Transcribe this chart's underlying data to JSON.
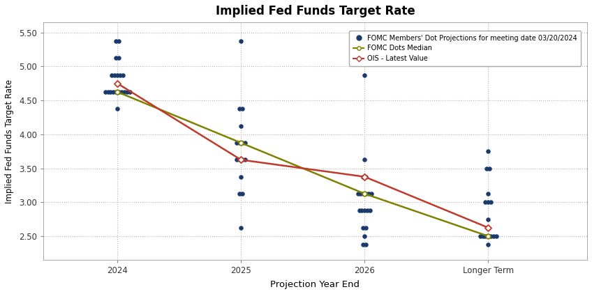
{
  "title": "Implied Fed Funds Target Rate",
  "xlabel": "Projection Year End",
  "ylabel": "Implied Fed Funds Target Rate",
  "background_color": "#ffffff",
  "x_positions": [
    1,
    2,
    3,
    4
  ],
  "x_labels": [
    "2024",
    "2025",
    "2026",
    "Longer Term"
  ],
  "xlim": [
    0.4,
    4.8
  ],
  "ylim": [
    2.15,
    5.65
  ],
  "yticks": [
    2.5,
    3.0,
    3.5,
    4.0,
    4.5,
    5.0,
    5.5
  ],
  "dot_color": "#1a3a6b",
  "dot_size": 22,
  "dots": {
    "2024": [
      4.625,
      4.625,
      4.625,
      4.625,
      4.625,
      4.625,
      4.625,
      4.625,
      4.875,
      4.875,
      4.875,
      4.875,
      4.875,
      4.375,
      5.125,
      5.125,
      5.375,
      5.375,
      4.625,
      4.625
    ],
    "2025": [
      5.375,
      4.375,
      4.375,
      4.125,
      3.875,
      3.875,
      3.875,
      3.875,
      3.625,
      3.625,
      3.625,
      3.625,
      3.375,
      3.125,
      3.125,
      2.625
    ],
    "2026": [
      4.875,
      3.625,
      3.375,
      3.375,
      3.125,
      3.125,
      3.125,
      3.125,
      3.125,
      3.125,
      2.875,
      2.875,
      2.875,
      2.875,
      2.875,
      2.625,
      2.625,
      2.5,
      2.375,
      2.375
    ],
    "longer": [
      3.75,
      3.5,
      3.5,
      3.125,
      3.0,
      3.0,
      3.0,
      2.75,
      2.625,
      2.5,
      2.5,
      2.5,
      2.5,
      2.5,
      2.5,
      2.5,
      2.375
    ]
  },
  "median_line": {
    "x": [
      1,
      2,
      3,
      4
    ],
    "y": [
      4.625,
      3.875,
      3.125,
      2.5
    ]
  },
  "ois_line": {
    "x": [
      1,
      2,
      3,
      4
    ],
    "y": [
      4.75,
      3.625,
      3.375,
      2.625
    ]
  },
  "median_color": "#808000",
  "ois_color": "#c0392b",
  "legend_dot_label": "FOMC Members' Dot Projections for meeting date 03/20/2024",
  "legend_median_label": "FOMC Dots Median",
  "legend_ois_label": "OIS - Latest Value"
}
